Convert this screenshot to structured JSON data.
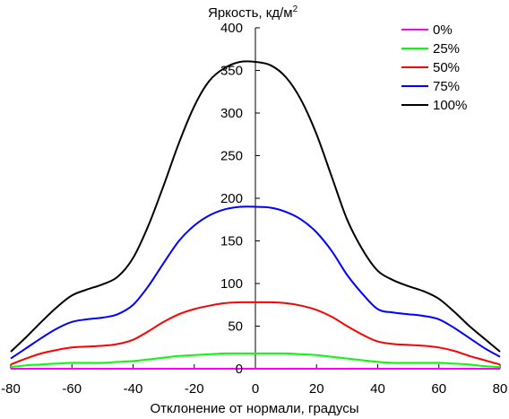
{
  "chart_data": {
    "type": "line",
    "ylabel": "Яркость, кд/м",
    "ylabel_superscript": "2",
    "xlabel": "Отклонение от нормали, градусы",
    "xlim": [
      -80,
      80
    ],
    "ylim": [
      0,
      400
    ],
    "xticks": [
      "-80",
      "-60",
      "-40",
      "-20",
      "0",
      "20",
      "40",
      "60",
      "80"
    ],
    "yticks": [
      "0",
      "50",
      "100",
      "150",
      "200",
      "250",
      "300",
      "350",
      "400"
    ],
    "legend_position": "top-right",
    "grid": false,
    "x": [
      -80,
      -75,
      -70,
      -65,
      -60,
      -55,
      -50,
      -45,
      -40,
      -35,
      -30,
      -25,
      -20,
      -15,
      -10,
      -5,
      0,
      5,
      10,
      15,
      20,
      25,
      30,
      35,
      40,
      45,
      50,
      55,
      60,
      65,
      70,
      75,
      80
    ],
    "series": [
      {
        "name": "0%",
        "color": "#ff00ff",
        "values": [
          0,
          0,
          0,
          0,
          0,
          0,
          0,
          0,
          0,
          0,
          0,
          0,
          0,
          0,
          0,
          0,
          0,
          0,
          0,
          0,
          0,
          0,
          0,
          0,
          0,
          0,
          0,
          0,
          0,
          0,
          0,
          0,
          0
        ]
      },
      {
        "name": "25%",
        "color": "#00ff00",
        "values": [
          2,
          4,
          5,
          6,
          7,
          7,
          7,
          8,
          9,
          11,
          13,
          15,
          16,
          17,
          18,
          18,
          18,
          18,
          18,
          17,
          16,
          14,
          12,
          10,
          8,
          7,
          7,
          7,
          7,
          6,
          5,
          3,
          2
        ]
      },
      {
        "name": "50%",
        "color": "#ff0000",
        "values": [
          5,
          12,
          18,
          22,
          25,
          26,
          27,
          29,
          34,
          44,
          55,
          64,
          70,
          74,
          77,
          78,
          78,
          78,
          77,
          74,
          69,
          61,
          50,
          40,
          32,
          29,
          28,
          27,
          25,
          21,
          15,
          10,
          5
        ]
      },
      {
        "name": "75%",
        "color": "#0000ff",
        "values": [
          12,
          24,
          36,
          47,
          55,
          58,
          60,
          64,
          75,
          97,
          124,
          150,
          168,
          180,
          187,
          190,
          190,
          189,
          184,
          175,
          160,
          138,
          110,
          88,
          70,
          66,
          64,
          62,
          58,
          48,
          36,
          24,
          14
        ]
      },
      {
        "name": "100%",
        "color": "#000000",
        "values": [
          20,
          37,
          55,
          72,
          86,
          93,
          99,
          108,
          130,
          168,
          215,
          265,
          308,
          338,
          353,
          360,
          360,
          356,
          342,
          315,
          275,
          225,
          175,
          140,
          115,
          104,
          97,
          91,
          82,
          67,
          50,
          35,
          20
        ]
      }
    ]
  }
}
